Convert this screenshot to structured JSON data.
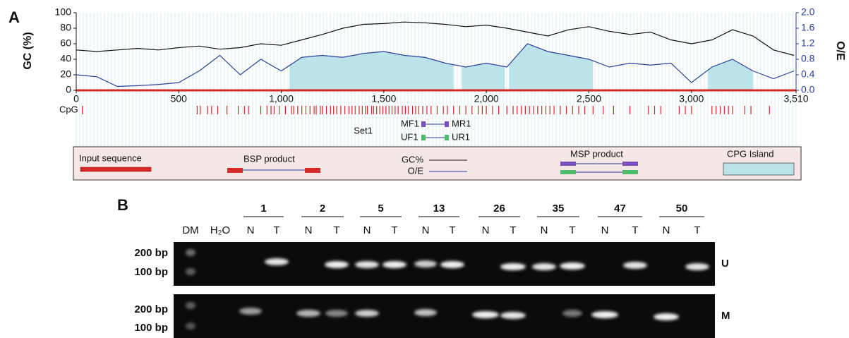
{
  "panel_labels": [
    "A",
    "B"
  ],
  "chart_data": {
    "type": "line",
    "xlim": [
      0,
      3510
    ],
    "xticks": [
      0,
      500,
      {
        "value": 1000,
        "label": "1,000"
      },
      {
        "value": 1500,
        "label": "1,500"
      },
      {
        "value": 2000,
        "label": "2,000"
      },
      {
        "value": 2500,
        "label": "2,500"
      },
      {
        "value": 3000,
        "label": "3,000"
      },
      {
        "value": 3510,
        "label": "3,510"
      }
    ],
    "ylabel": "GC (%)",
    "ylim": [
      0,
      100
    ],
    "yticks": [
      0,
      20,
      40,
      60,
      80,
      100
    ],
    "y2label": "O/E",
    "y2lim": [
      0,
      2
    ],
    "y2ticks": [
      {
        "value": 0,
        "label": "0.0"
      },
      0.4,
      0.8,
      1.2,
      1.6,
      {
        "value": 2,
        "label": "2.0"
      }
    ],
    "x": [
      0,
      100,
      200,
      300,
      400,
      500,
      600,
      700,
      800,
      900,
      1000,
      1100,
      1200,
      1300,
      1400,
      1500,
      1600,
      1700,
      1800,
      1900,
      2000,
      2100,
      2200,
      2300,
      2400,
      2500,
      2600,
      2700,
      2800,
      2900,
      3000,
      3100,
      3200,
      3300,
      3400,
      3500
    ],
    "series": [
      {
        "name": "GC%",
        "color": "#111111",
        "values": [
          52,
          50,
          52,
          54,
          52,
          55,
          57,
          53,
          55,
          60,
          58,
          65,
          72,
          80,
          85,
          86,
          88,
          87,
          85,
          82,
          84,
          80,
          75,
          70,
          78,
          82,
          76,
          72,
          75,
          65,
          60,
          65,
          78,
          70,
          52,
          45
        ]
      },
      {
        "name": "O/E",
        "color": "#2a3f9a",
        "axis": "y2",
        "values": [
          0.4,
          0.35,
          0.1,
          0.12,
          0.15,
          0.2,
          0.5,
          0.9,
          0.4,
          0.8,
          0.5,
          0.85,
          0.9,
          0.85,
          0.95,
          1.0,
          0.9,
          0.85,
          0.7,
          0.6,
          0.7,
          0.6,
          1.2,
          1.0,
          0.9,
          0.8,
          0.6,
          0.7,
          0.65,
          0.7,
          0.2,
          0.6,
          0.8,
          0.5,
          0.3,
          0.5
        ]
      }
    ],
    "islands": [
      [
        1040,
        1840
      ],
      [
        1880,
        2090
      ],
      [
        2110,
        2520
      ],
      [
        3080,
        3300
      ]
    ],
    "cpg_label": "CpG",
    "cpg_sites": [
      30,
      590,
      605,
      640,
      660,
      690,
      735,
      790,
      820,
      840,
      900,
      930,
      950,
      965,
      990,
      1020,
      1050,
      1060,
      1080,
      1100,
      1120,
      1140,
      1160,
      1170,
      1190,
      1200,
      1220,
      1240,
      1255,
      1270,
      1290,
      1310,
      1330,
      1345,
      1360,
      1380,
      1395,
      1410,
      1420,
      1440,
      1450,
      1465,
      1480,
      1495,
      1510,
      1525,
      1540,
      1555,
      1570,
      1590,
      1605,
      1620,
      1640,
      1655,
      1670,
      1690,
      1710,
      1730,
      1760,
      1790,
      1810,
      1840,
      1870,
      1900,
      1930,
      1960,
      1980,
      2000,
      2030,
      2060,
      2100,
      2130,
      2150,
      2170,
      2190,
      2210,
      2230,
      2250,
      2270,
      2290,
      2310,
      2330,
      2360,
      2390,
      2420,
      2450,
      2480,
      2520,
      2570,
      2620,
      2700,
      2790,
      2820,
      2850,
      2940,
      2970,
      3000,
      3100,
      3120,
      3140,
      3160,
      3180,
      3200,
      3260,
      3290,
      3380
    ],
    "set_label": "Set1",
    "primer_labels": [
      "MF1",
      "MR1",
      "UF1",
      "UR1"
    ],
    "legend_items": [
      "Input sequence",
      "BSP product",
      "MSP product",
      "CPG Island"
    ]
  },
  "gel": {
    "lanes": [
      "DM",
      "H₂O"
    ],
    "samples": [
      {
        "name": "1",
        "lanes": [
          "N",
          "T"
        ]
      },
      {
        "name": "2",
        "lanes": [
          "N",
          "T"
        ]
      },
      {
        "name": "5",
        "lanes": [
          "N",
          "T"
        ]
      },
      {
        "name": "13",
        "lanes": [
          "N",
          "T"
        ]
      },
      {
        "name": "26",
        "lanes": [
          "N",
          "T"
        ]
      },
      {
        "name": "35",
        "lanes": [
          "N",
          "T"
        ]
      },
      {
        "name": "47",
        "lanes": [
          "N",
          "T"
        ]
      },
      {
        "name": "50",
        "lanes": [
          "N",
          "T"
        ]
      }
    ],
    "rows": [
      {
        "label": "U",
        "sizes": [
          "200 bp",
          "100 bp"
        ]
      },
      {
        "label": "M",
        "sizes": [
          "200 bp",
          "100 bp"
        ]
      }
    ]
  }
}
